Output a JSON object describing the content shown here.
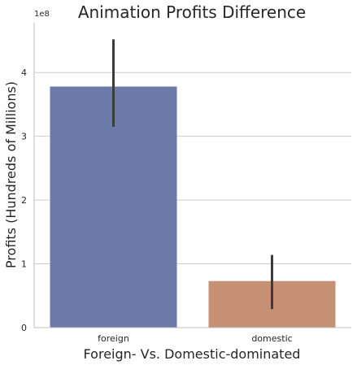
{
  "chart_data": {
    "type": "bar",
    "title": "Animation Profits Difference",
    "xlabel": "Foreign- Vs. Domestic-dominated",
    "ylabel": "Profits (Hundreds of Millions)",
    "y_offset_label": "1e8",
    "categories": [
      "foreign",
      "domestic"
    ],
    "values": [
      3.78,
      0.73
    ],
    "error_low": [
      3.15,
      0.29
    ],
    "error_high": [
      4.52,
      1.14
    ],
    "value_scale": "1e8",
    "ylim": [
      0,
      4.78
    ],
    "yticks": [
      0,
      1,
      2,
      3,
      4
    ],
    "ytick_labels": [
      "0",
      "1",
      "2",
      "3",
      "4"
    ],
    "grid": "horizontal",
    "legend": "none",
    "colors": [
      "#6c7aa9",
      "#c69075"
    ],
    "error_color": "#3c3c3c"
  }
}
